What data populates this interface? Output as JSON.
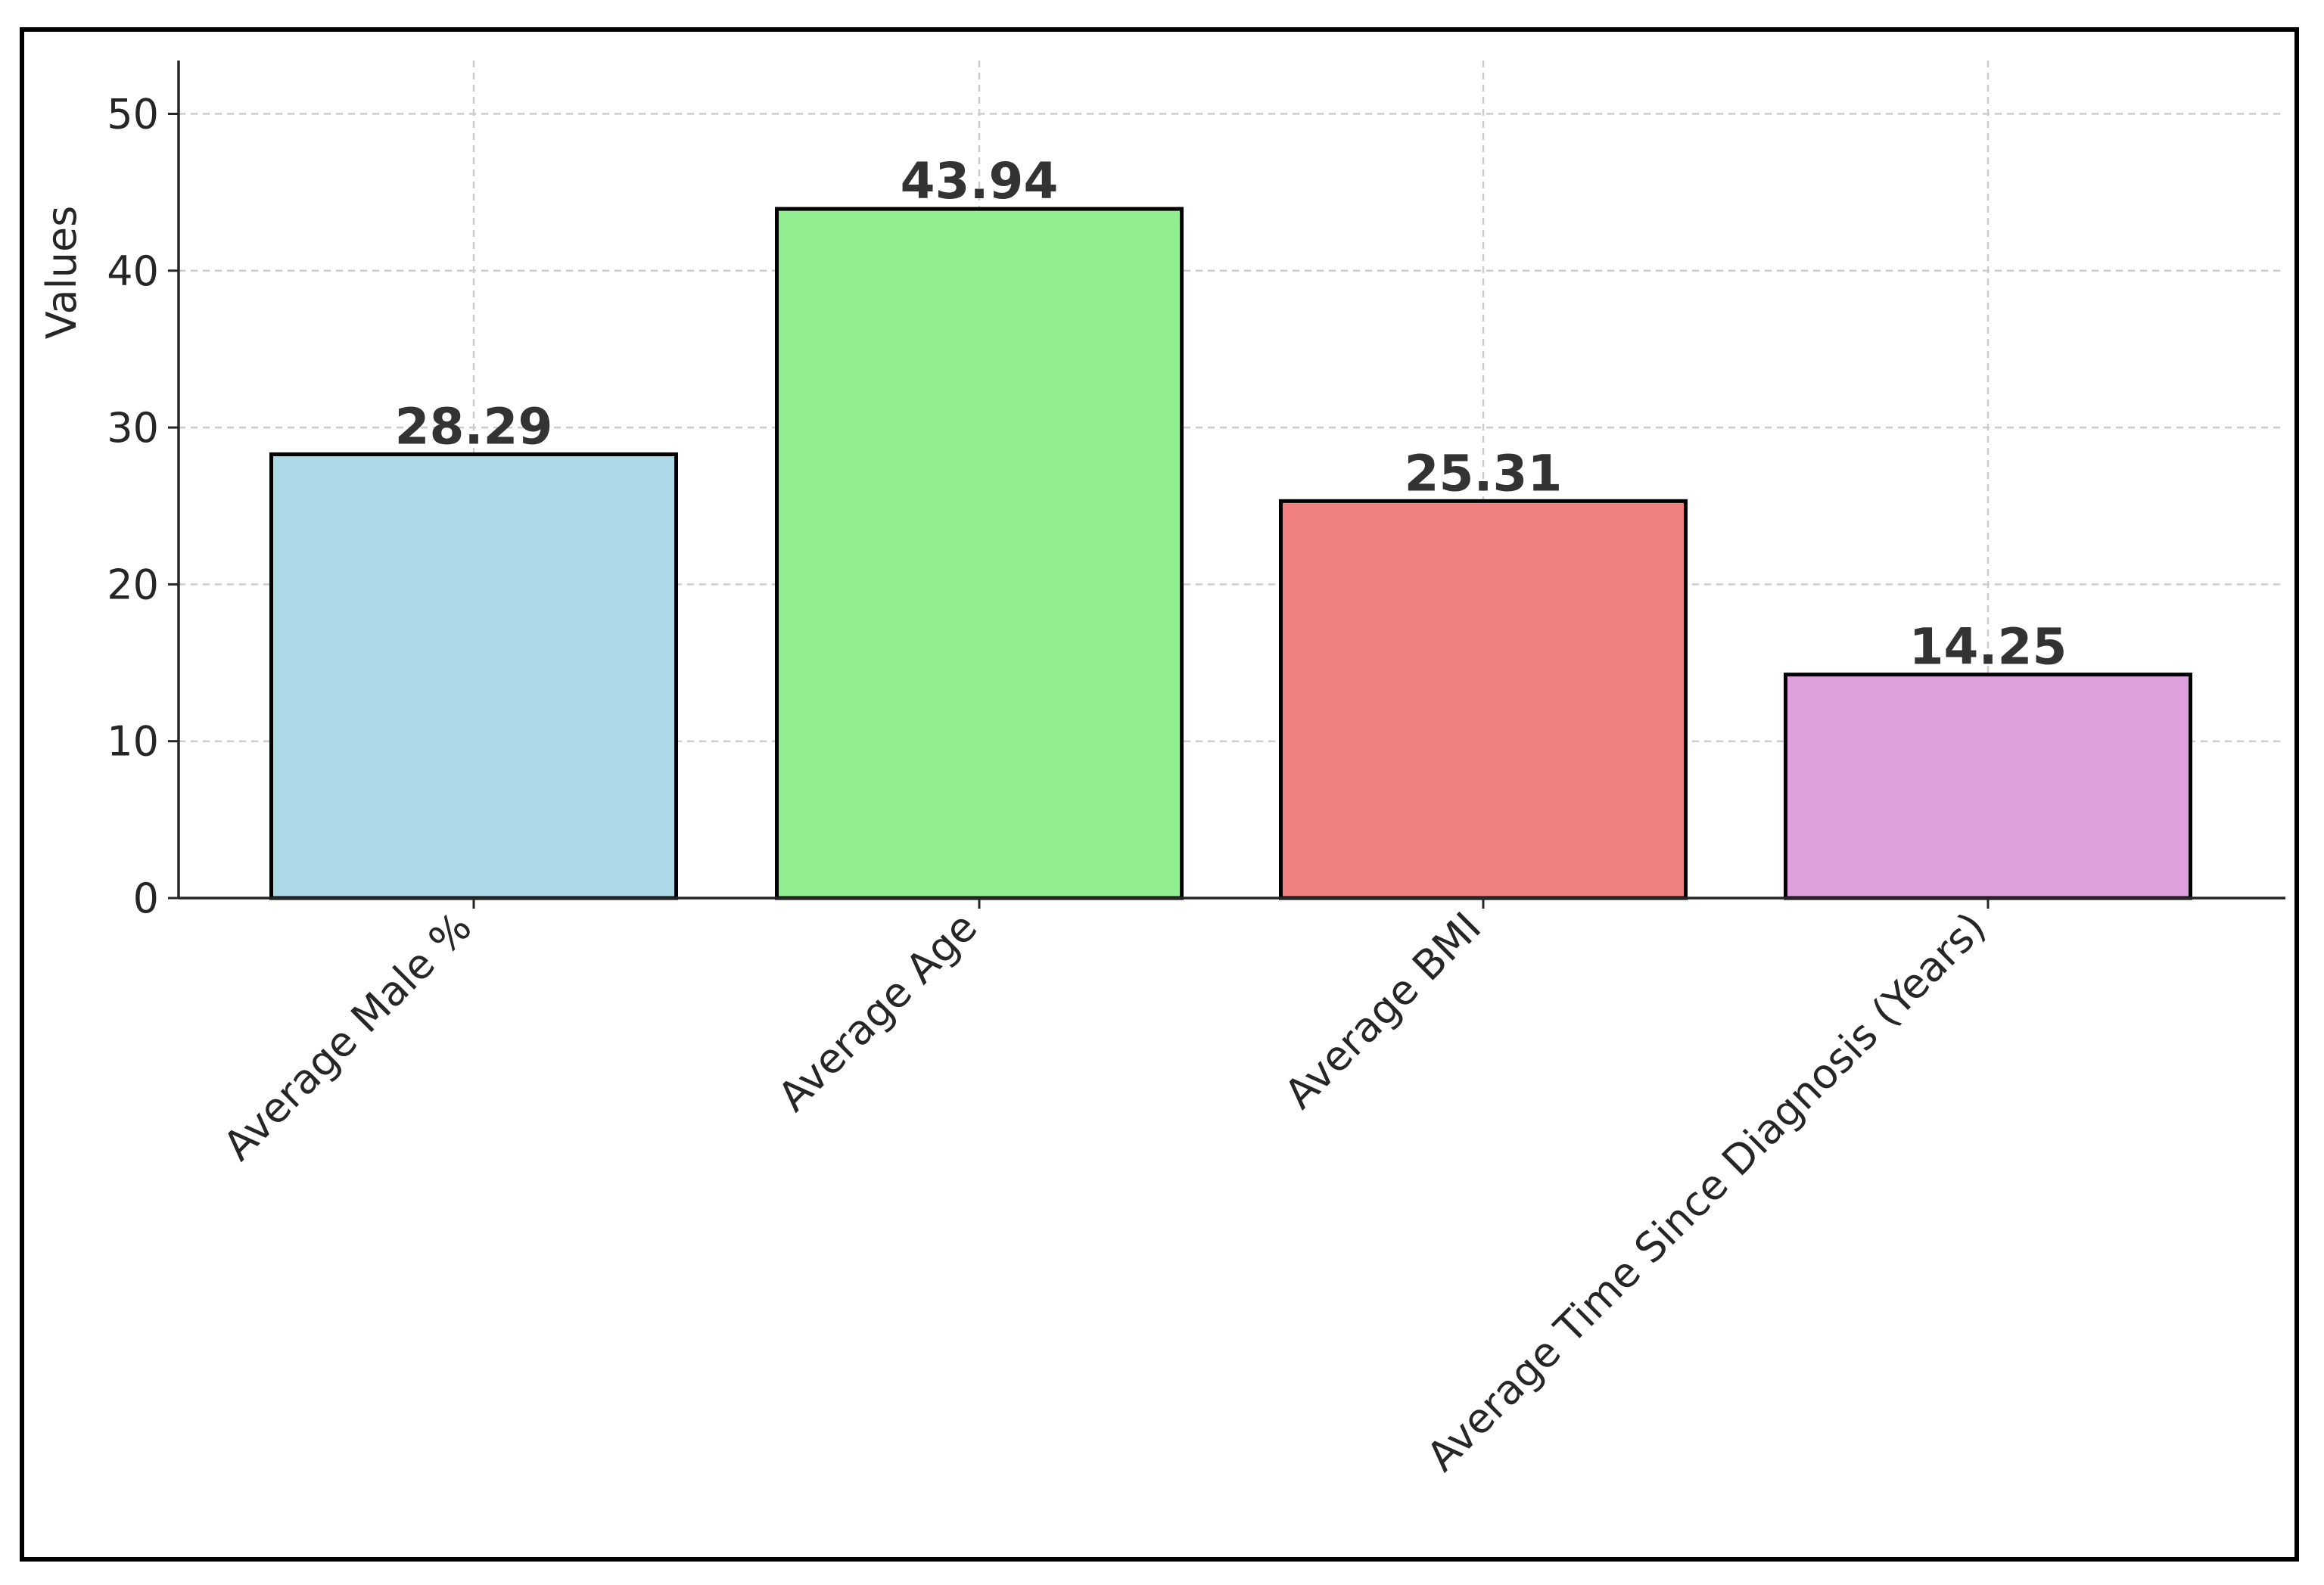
{
  "chart_data": {
    "type": "bar",
    "title": "",
    "xlabel": "",
    "ylabel": "Values",
    "ylim": [
      0,
      53.4
    ],
    "yticks": [
      0,
      10,
      20,
      30,
      40,
      50
    ],
    "grid": true,
    "categories": [
      "Average Male %",
      "Average Age",
      "Average BMI",
      "Average Time Since Diagnosis (Years)"
    ],
    "values": [
      28.29,
      43.94,
      25.31,
      14.25
    ],
    "data_labels": [
      "28.29",
      "43.94",
      "25.31",
      "14.25"
    ],
    "colors": [
      "#add8e6",
      "#90ee90",
      "#f08080",
      "#dda0dd"
    ],
    "edge_color": "#000000",
    "xtick_rotation": -45
  }
}
